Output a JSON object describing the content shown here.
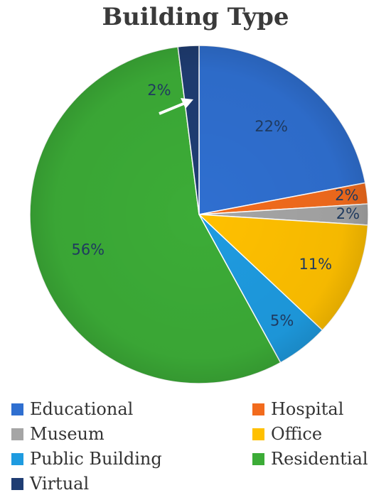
{
  "chart_data": {
    "type": "pie",
    "title": "Building Type",
    "slices": [
      {
        "name": "Educational",
        "value": 22,
        "label": "22%",
        "color": "#2f6fd0"
      },
      {
        "name": "Hospital",
        "value": 2,
        "label": "2%",
        "color": "#f26b1d"
      },
      {
        "name": "Museum",
        "value": 2,
        "label": "2%",
        "color": "#a5a5a5"
      },
      {
        "name": "Office",
        "value": 11,
        "label": "11%",
        "color": "#ffc000"
      },
      {
        "name": "Public Building",
        "value": 5,
        "label": "5%",
        "color": "#1e9be0"
      },
      {
        "name": "Residential",
        "value": 56,
        "label": "56%",
        "color": "#3cac37"
      },
      {
        "name": "Virtual",
        "value": 2,
        "label": "2%",
        "color": "#1f3d73"
      }
    ],
    "legend": {
      "placement": "bottom",
      "columns": 2
    },
    "annotation": {
      "type": "arrow",
      "points_to": "Virtual",
      "color": "#ffffff"
    }
  }
}
